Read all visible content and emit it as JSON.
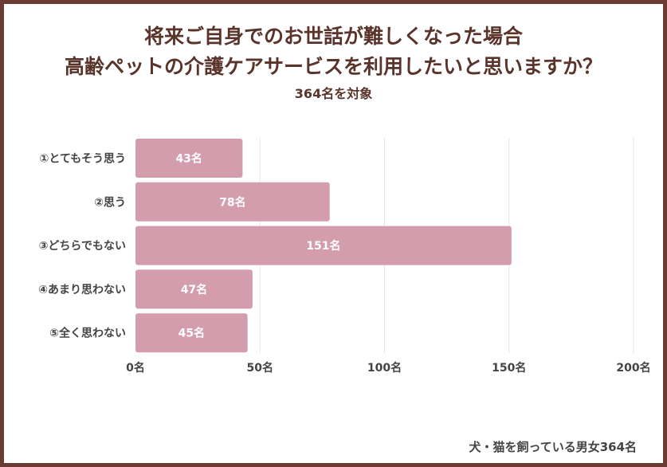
{
  "header": {
    "title_line1": "将来ご自身でのお世話が難しくなった場合",
    "title_line2": "高齢ペットの介護ケアサービスを利用したいと思いますか？",
    "subtitle": "364名を対象"
  },
  "footer": "犬・猫を飼っている男女364名",
  "colors": {
    "bar": "#d39dae",
    "border": "#6b3c34",
    "title": "#5a342a"
  },
  "chart_data": {
    "type": "bar",
    "orientation": "horizontal",
    "categories": [
      "①とてもそう思う",
      "②思う",
      "③どちらでもない",
      "④あまり思わない",
      "⑤全く思わない"
    ],
    "values": [
      43,
      78,
      151,
      47,
      45
    ],
    "value_labels": [
      "43名",
      "78名",
      "151名",
      "47名",
      "45名"
    ],
    "xlim": [
      0,
      200
    ],
    "xticks": [
      0,
      50,
      100,
      150,
      200
    ],
    "xtick_labels": [
      "0名",
      "50名",
      "100名",
      "150名",
      "200名"
    ],
    "grid": true,
    "unit": "名"
  }
}
